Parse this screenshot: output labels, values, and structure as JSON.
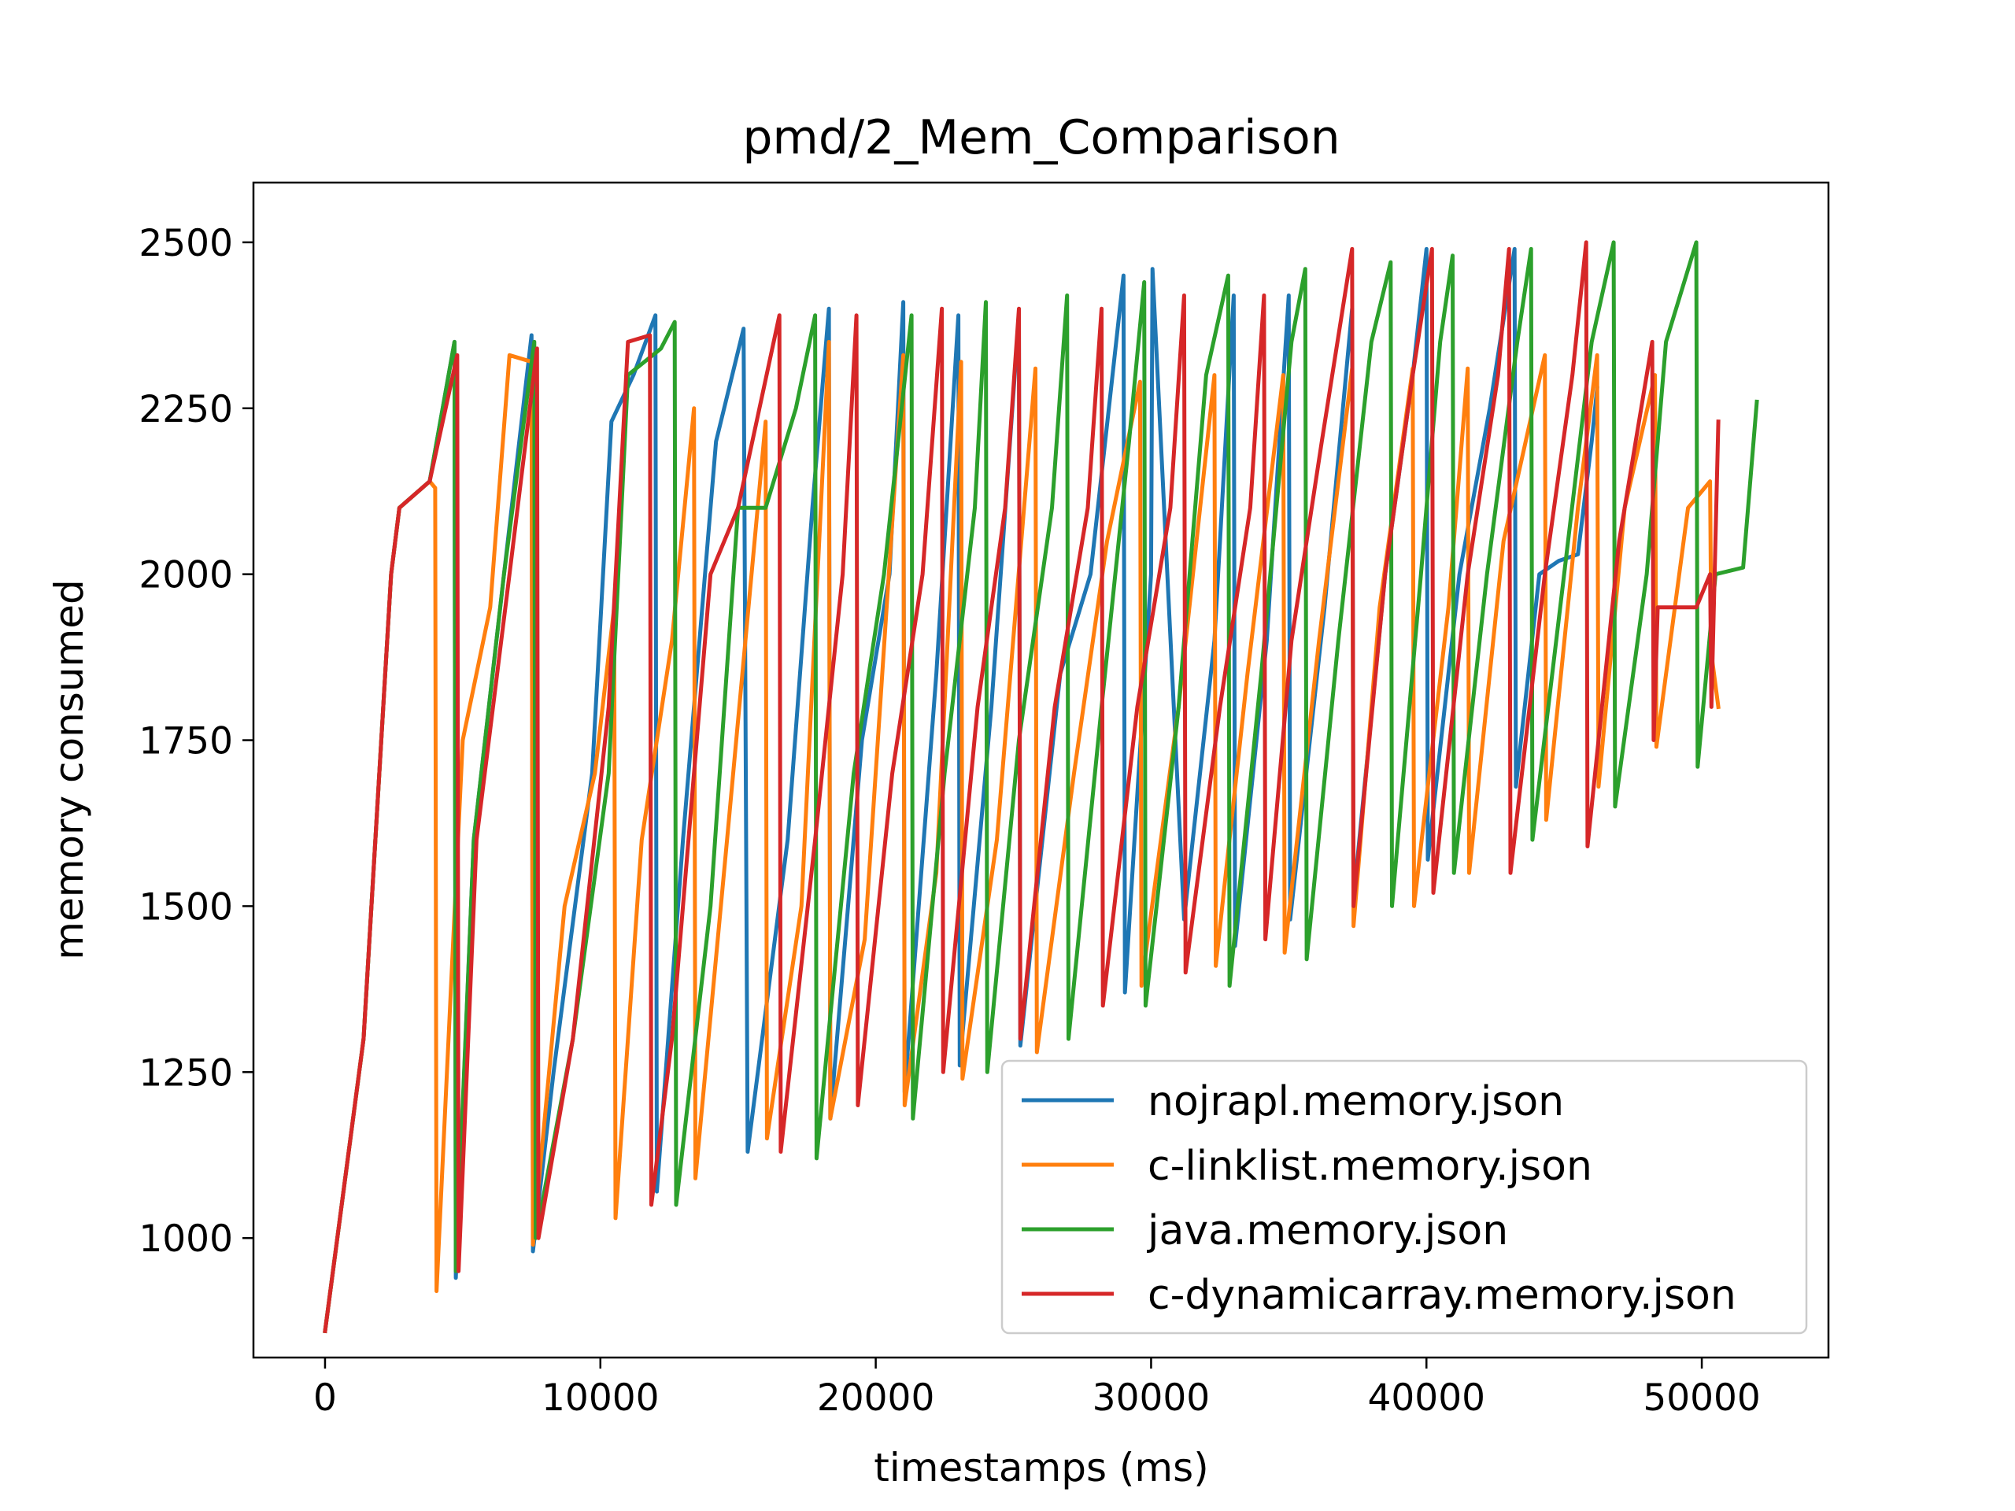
{
  "chart_data": {
    "type": "line",
    "title": "pmd/2_Mem_Comparison",
    "xlabel": "timestamps (ms)",
    "ylabel": "memory consumed",
    "xlim": [
      -2600,
      54600
    ],
    "ylim": [
      820,
      2590
    ],
    "xticks": [
      0,
      10000,
      20000,
      30000,
      40000,
      50000
    ],
    "xtick_labels": [
      "0",
      "10000",
      "20000",
      "30000",
      "40000",
      "50000"
    ],
    "yticks": [
      1000,
      1250,
      1500,
      1750,
      2000,
      2250,
      2500
    ],
    "ytick_labels": [
      "1000",
      "1250",
      "1500",
      "1750",
      "2000",
      "2250",
      "2500"
    ],
    "grid": false,
    "legend_position": "lower-right",
    "series": [
      {
        "name": "nojrapl.memory.json",
        "color": "#1f77b4",
        "x": [
          0,
          1400,
          2400,
          2700,
          3800,
          4700,
          4750,
          5400,
          6500,
          7500,
          7550,
          8300,
          9700,
          10400,
          11200,
          12000,
          12050,
          13000,
          14200,
          15200,
          15350,
          16800,
          17700,
          18300,
          18350,
          19500,
          20500,
          21000,
          21050,
          22200,
          23000,
          23050,
          24200,
          25200,
          25250,
          26700,
          27800,
          29000,
          29050,
          30000,
          30050,
          31200,
          32300,
          33000,
          33050,
          34200,
          35000,
          35050,
          36300,
          37300,
          37350,
          38500,
          39500,
          40000,
          40050,
          41200,
          42300,
          43200,
          43250,
          44100,
          44800,
          45500,
          46000,
          46200
        ],
        "y": [
          860,
          1300,
          2000,
          2100,
          2140,
          2350,
          940,
          1600,
          2000,
          2360,
          980,
          1250,
          1700,
          2230,
          2300,
          2390,
          1070,
          1600,
          2200,
          2370,
          1130,
          1600,
          2100,
          2400,
          1180,
          1750,
          2000,
          2410,
          1220,
          1850,
          2390,
          1260,
          1800,
          2390,
          1290,
          1850,
          2000,
          2450,
          1370,
          2000,
          2460,
          1480,
          1900,
          2420,
          1440,
          1900,
          2420,
          1480,
          1950,
          2400,
          1510,
          2000,
          2300,
          2490,
          1570,
          2000,
          2250,
          2490,
          1680,
          2000,
          2020,
          2030,
          2200,
          2280
        ]
      },
      {
        "name": "c-linklist.memory.json",
        "color": "#ff7f0e",
        "x": [
          0,
          1400,
          2400,
          2700,
          3800,
          4000,
          4050,
          5000,
          6000,
          6700,
          7500,
          7550,
          8700,
          9800,
          10500,
          10550,
          11500,
          12600,
          13400,
          13450,
          14600,
          16000,
          16050,
          17300,
          18300,
          18350,
          19600,
          21000,
          21050,
          22200,
          23100,
          23150,
          24400,
          25800,
          25850,
          27200,
          28400,
          29600,
          29650,
          31000,
          32300,
          32350,
          33500,
          34800,
          34850,
          36100,
          37300,
          37350,
          38300,
          39500,
          39550,
          40800,
          41500,
          41550,
          42800,
          44300,
          44350,
          45500,
          46200,
          46250,
          47200,
          48300,
          48350,
          49500,
          50300,
          50350,
          50600
        ],
        "y": [
          860,
          1300,
          2000,
          2100,
          2140,
          2130,
          920,
          1750,
          1950,
          2330,
          2320,
          990,
          1500,
          1700,
          1950,
          1030,
          1600,
          1900,
          2250,
          1090,
          1600,
          2230,
          1150,
          1500,
          2350,
          1180,
          1450,
          2330,
          1200,
          1550,
          2320,
          1240,
          1600,
          2310,
          1280,
          1700,
          2050,
          2290,
          1380,
          1800,
          2300,
          1410,
          1850,
          2300,
          1430,
          1900,
          2310,
          1470,
          1950,
          2310,
          1500,
          1950,
          2310,
          1550,
          2050,
          2330,
          1630,
          2100,
          2330,
          1680,
          2100,
          2300,
          1740,
          2100,
          2140,
          1880,
          1800
        ]
      },
      {
        "name": "java.memory.json",
        "color": "#2ca02c",
        "x": [
          0,
          1400,
          2400,
          2700,
          3800,
          4700,
          4750,
          5400,
          6500,
          7600,
          7650,
          9000,
          10300,
          11000,
          12200,
          12700,
          12750,
          14000,
          15000,
          16000,
          17100,
          17800,
          17850,
          19200,
          20300,
          21300,
          21350,
          22500,
          23600,
          24000,
          24050,
          25200,
          26400,
          26950,
          27000,
          28200,
          29200,
          29750,
          29800,
          31000,
          32000,
          32800,
          32850,
          34000,
          35100,
          35600,
          35650,
          36800,
          38000,
          38700,
          38750,
          39800,
          40500,
          40950,
          41000,
          42200,
          43300,
          43800,
          43850,
          45000,
          46000,
          46800,
          46850,
          48000,
          48700,
          49800,
          49850,
          50500,
          51500,
          52000
        ],
        "y": [
          860,
          1300,
          2000,
          2100,
          2140,
          2350,
          950,
          1600,
          2000,
          2350,
          1000,
          1300,
          1700,
          2300,
          2340,
          2380,
          1050,
          1500,
          2100,
          2100,
          2250,
          2390,
          1120,
          1700,
          2000,
          2390,
          1180,
          1700,
          2100,
          2410,
          1250,
          1750,
          2100,
          2420,
          1300,
          1800,
          2200,
          2440,
          1350,
          1800,
          2300,
          2450,
          1380,
          1850,
          2350,
          2460,
          1420,
          1900,
          2350,
          2470,
          1500,
          2000,
          2350,
          2480,
          1550,
          2000,
          2350,
          2490,
          1600,
          2000,
          2350,
          2500,
          1650,
          2000,
          2350,
          2500,
          1710,
          2000,
          2010,
          2260
        ]
      },
      {
        "name": "c-dynamicarray.memory.json",
        "color": "#d62728",
        "x": [
          0,
          1400,
          2400,
          2700,
          3800,
          4800,
          4850,
          5500,
          6700,
          7700,
          7750,
          9000,
          10300,
          11000,
          11800,
          11850,
          12600,
          14000,
          15000,
          16500,
          16550,
          17800,
          18800,
          19300,
          19350,
          20600,
          21700,
          22400,
          22450,
          23700,
          24700,
          25200,
          25250,
          26500,
          27700,
          28200,
          28250,
          29500,
          30700,
          31200,
          31250,
          32500,
          33600,
          34100,
          34150,
          35100,
          36200,
          37300,
          37350,
          38500,
          39500,
          40200,
          40250,
          41500,
          42600,
          43000,
          43050,
          44300,
          45300,
          45800,
          45850,
          47000,
          48200,
          48250,
          48400,
          49800,
          50300,
          50350,
          50600
        ],
        "y": [
          860,
          1300,
          2000,
          2100,
          2140,
          2330,
          950,
          1600,
          2000,
          2340,
          1000,
          1300,
          1800,
          2350,
          2360,
          1050,
          1300,
          2000,
          2100,
          2390,
          1130,
          1600,
          2000,
          2390,
          1200,
          1700,
          2000,
          2400,
          1250,
          1800,
          2100,
          2400,
          1300,
          1800,
          2100,
          2400,
          1350,
          1800,
          2100,
          2420,
          1400,
          1800,
          2100,
          2420,
          1450,
          1900,
          2200,
          2490,
          1500,
          2000,
          2300,
          2490,
          1520,
          2000,
          2300,
          2490,
          1550,
          2000,
          2300,
          2500,
          1590,
          2050,
          2350,
          1750,
          1950,
          1950,
          2000,
          1800,
          2230
        ]
      }
    ]
  }
}
